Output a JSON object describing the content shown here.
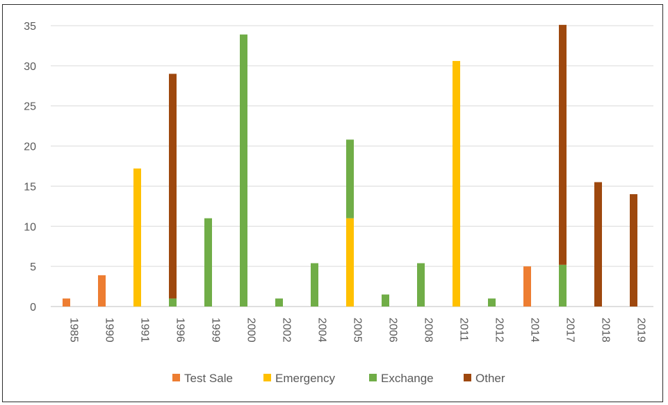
{
  "chart_data": {
    "type": "bar",
    "stacked": true,
    "categories": [
      "1985",
      "1990",
      "1991",
      "1996",
      "1999",
      "2000",
      "2002",
      "2004",
      "2005",
      "2006",
      "2008",
      "2011",
      "2012",
      "2014",
      "2017",
      "2018",
      "2019"
    ],
    "series": [
      {
        "name": "Test Sale",
        "color": "#ED7D31",
        "values": [
          1,
          3.9,
          0,
          0,
          0,
          0,
          0,
          0,
          0,
          0,
          0,
          0,
          0,
          5,
          0,
          0,
          0
        ]
      },
      {
        "name": "Emergency",
        "color": "#FFC000",
        "values": [
          0,
          0,
          17.2,
          0,
          0,
          0,
          0,
          0,
          11,
          0,
          0,
          30.6,
          0,
          0,
          0,
          0,
          0
        ]
      },
      {
        "name": "Exchange",
        "color": "#70AD47",
        "values": [
          0,
          0,
          0,
          1,
          11,
          33.9,
          1,
          5.4,
          9.8,
          1.5,
          5.4,
          0,
          1,
          0,
          5.2,
          0,
          0
        ]
      },
      {
        "name": "Other",
        "color": "#9E480E",
        "values": [
          0,
          0,
          0,
          28,
          0,
          0,
          0,
          0,
          0,
          0,
          0,
          0,
          0,
          0,
          29.9,
          15.5,
          14
        ]
      }
    ],
    "title": "",
    "xlabel": "",
    "ylabel": "",
    "ylim": [
      0,
      35
    ],
    "yticks": [
      "0",
      "5",
      "10",
      "15",
      "20",
      "25",
      "30",
      "35"
    ],
    "grid": true,
    "legend_position": "bottom"
  }
}
